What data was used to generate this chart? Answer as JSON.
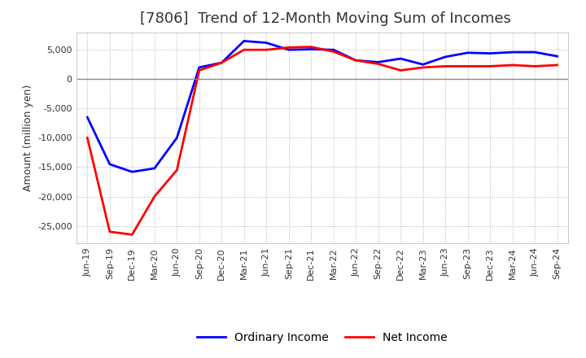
{
  "title": "[7806]  Trend of 12-Month Moving Sum of Incomes",
  "ylabel": "Amount (million yen)",
  "x_labels": [
    "Jun-19",
    "Sep-19",
    "Dec-19",
    "Mar-20",
    "Jun-20",
    "Sep-20",
    "Dec-20",
    "Mar-21",
    "Jun-21",
    "Sep-21",
    "Dec-21",
    "Mar-22",
    "Jun-22",
    "Sep-22",
    "Dec-22",
    "Mar-23",
    "Jun-23",
    "Sep-23",
    "Dec-23",
    "Mar-24",
    "Jun-24",
    "Sep-24"
  ],
  "ordinary_income": [
    -6500,
    -14500,
    -15800,
    -15200,
    -10000,
    2000,
    2800,
    6500,
    6200,
    5000,
    5100,
    5000,
    3200,
    2900,
    3500,
    2500,
    3800,
    4500,
    4400,
    4600,
    4600,
    3900
  ],
  "net_income": [
    -10000,
    -26000,
    -26500,
    -20000,
    -15500,
    1500,
    2800,
    5000,
    5000,
    5400,
    5500,
    4700,
    3200,
    2600,
    1500,
    2000,
    2200,
    2200,
    2200,
    2400,
    2200,
    2400
  ],
  "ordinary_color": "#0000ff",
  "net_color": "#ff0000",
  "bg_color": "#ffffff",
  "plot_bg_color": "#ffffff",
  "grid_color": "#b0b0b0",
  "zero_line_color": "#888888",
  "title_color": "#333333",
  "ylim": [
    -28000,
    8000
  ],
  "yticks": [
    -25000,
    -20000,
    -15000,
    -10000,
    -5000,
    0,
    5000
  ],
  "line_width": 2.0,
  "title_fontsize": 13,
  "axis_fontsize": 9,
  "tick_fontsize": 8,
  "legend_fontsize": 10
}
